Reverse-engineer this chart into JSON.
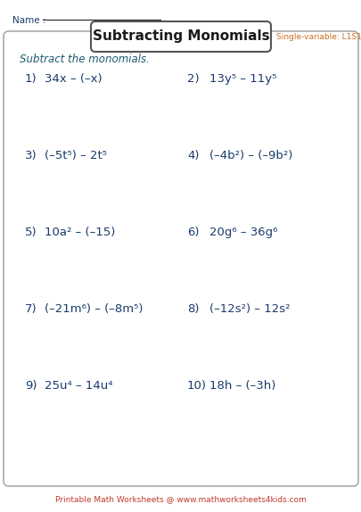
{
  "title": "Subtracting Monomials",
  "subtitle": "Single-variable: L1S1",
  "name_label": "Name :",
  "instruction": "Subtract the monomials.",
  "problems": [
    {
      "num": "1)",
      "expr": "34x – (–x)"
    },
    {
      "num": "2)",
      "expr": "13y⁵ – 11y⁵"
    },
    {
      "num": "3)",
      "expr": "(–5t⁵) – 2t⁵"
    },
    {
      "num": "4)",
      "expr": "(–4b²) – (–9b²)"
    },
    {
      "num": "5)",
      "expr": "10a² – (–15)"
    },
    {
      "num": "6)",
      "expr": "20g⁶ – 36g⁶"
    },
    {
      "num": "7)",
      "expr": "(–21m⁶) – (–8m⁵)"
    },
    {
      "num": "8)",
      "expr": "(–12s²) – 12s²"
    },
    {
      "num": "9)",
      "expr": "25u⁴ – 14u⁴"
    },
    {
      "num": "10)",
      "expr": "18h – (–3h)"
    }
  ],
  "footer": "Printable Math Worksheets @ www.mathworksheets4kids.com",
  "bg_color": "#ffffff",
  "title_color": "#1a1a1a",
  "subtitle_color": "#c87020",
  "problem_color": "#1a3a6b",
  "instruction_color": "#1a5a6b",
  "footer_color": "#c0392b",
  "name_color": "#1a3a6b",
  "box_edge_color": "#aaaaaa",
  "title_box_edge": "#555555",
  "name_line_color": "#333333"
}
